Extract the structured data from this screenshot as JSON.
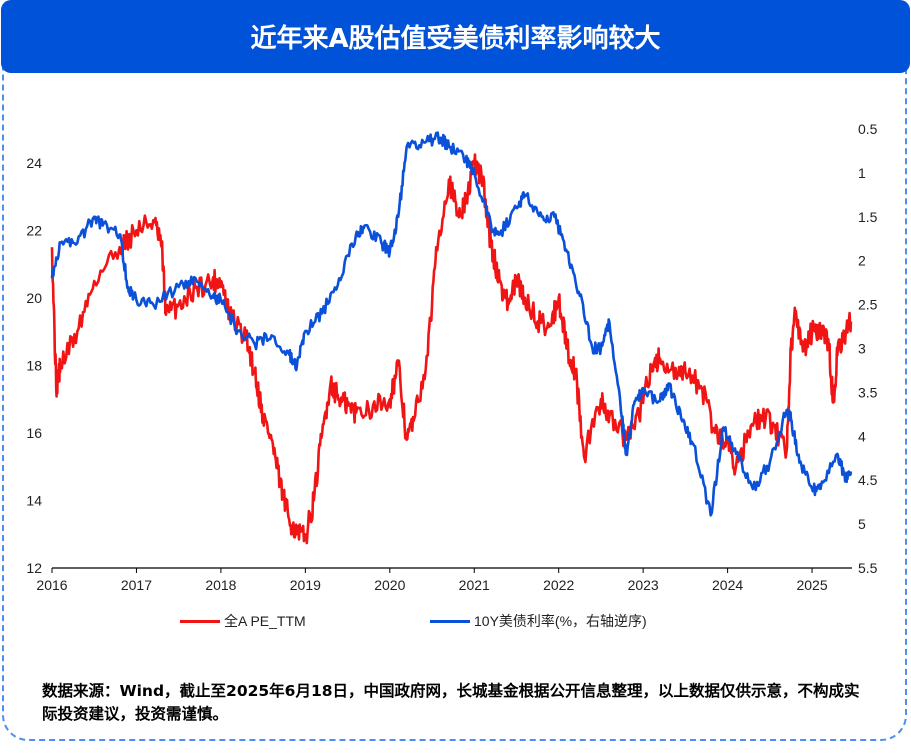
{
  "title": "近年来A股估值受美债利率影响较大",
  "footnote": "数据来源：Wind，截止至2025年6月18日，中国政府网，长城基金根据公开信息整理，以上数据仅供示意，不构成实际投资建议，投资需谨慎。",
  "chart_data": {
    "type": "line",
    "xlim": [
      2016,
      2025.46
    ],
    "x_ticks": [
      "2016",
      "2017",
      "2018",
      "2019",
      "2020",
      "2021",
      "2022",
      "2023",
      "2024",
      "2025"
    ],
    "y_left": {
      "range": [
        12,
        25
      ],
      "ticks": [
        "12",
        "14",
        "16",
        "18",
        "20",
        "22",
        "24"
      ]
    },
    "y_right": {
      "range": [
        0.5,
        5.5
      ],
      "inverted": true,
      "ticks": [
        "0.5",
        "1",
        "1.5",
        "2",
        "2.5",
        "3",
        "3.5",
        "4",
        "4.5",
        "5",
        "5.5"
      ]
    },
    "grid": false,
    "legend_position": "bottom",
    "series": [
      {
        "name": "全A PE_TTM",
        "axis": "left",
        "color": "#f01414",
        "x": [
          2016.0,
          2016.05,
          2016.1,
          2016.3,
          2016.5,
          2016.8,
          2017.0,
          2017.2,
          2017.3,
          2017.35,
          2017.5,
          2017.7,
          2017.9,
          2018.0,
          2018.1,
          2018.3,
          2018.4,
          2018.5,
          2018.6,
          2018.7,
          2018.8,
          2018.9,
          2019.0,
          2019.1,
          2019.2,
          2019.3,
          2019.4,
          2019.5,
          2019.6,
          2019.8,
          2020.0,
          2020.1,
          2020.2,
          2020.3,
          2020.45,
          2020.55,
          2020.7,
          2020.8,
          2020.9,
          2021.0,
          2021.1,
          2021.2,
          2021.3,
          2021.4,
          2021.5,
          2021.6,
          2021.75,
          2021.9,
          2022.0,
          2022.1,
          2022.2,
          2022.3,
          2022.5,
          2022.6,
          2022.8,
          2022.95,
          2023.1,
          2023.2,
          2023.4,
          2023.5,
          2023.7,
          2023.85,
          2024.0,
          2024.1,
          2024.25,
          2024.4,
          2024.55,
          2024.7,
          2024.75,
          2024.8,
          2024.9,
          2025.0,
          2025.1,
          2025.2,
          2025.25,
          2025.3,
          2025.4,
          2025.46
        ],
        "y": [
          21.5,
          17.3,
          18.0,
          19.0,
          20.5,
          21.5,
          22.0,
          22.3,
          21.5,
          19.5,
          19.8,
          20.3,
          20.5,
          20.5,
          19.5,
          18.8,
          17.8,
          16.5,
          15.8,
          14.5,
          13.5,
          13.0,
          12.9,
          14.0,
          16.0,
          17.5,
          17.0,
          16.8,
          16.6,
          16.8,
          17.0,
          18.0,
          15.8,
          16.5,
          18.3,
          21.5,
          23.5,
          22.5,
          22.8,
          24.0,
          23.5,
          21.5,
          20.5,
          19.8,
          20.5,
          20.0,
          19.3,
          19.2,
          20.0,
          18.5,
          17.8,
          15.3,
          17.0,
          16.5,
          15.8,
          16.5,
          18.0,
          18.2,
          17.6,
          17.8,
          17.3,
          16.0,
          15.7,
          15.0,
          16.0,
          16.5,
          16.2,
          15.5,
          18.5,
          19.5,
          18.5,
          19.0,
          19.0,
          18.6,
          16.9,
          18.3,
          19.0,
          19.3
        ]
      },
      {
        "name": "10Y美债利率(%，右轴逆序)",
        "axis": "right",
        "color": "#0a50d8",
        "x": [
          2016.0,
          2016.1,
          2016.3,
          2016.5,
          2016.6,
          2016.8,
          2016.9,
          2017.0,
          2017.2,
          2017.5,
          2017.7,
          2017.9,
          2018.0,
          2018.2,
          2018.4,
          2018.6,
          2018.8,
          2018.9,
          2019.0,
          2019.2,
          2019.4,
          2019.6,
          2019.7,
          2019.9,
          2020.0,
          2020.1,
          2020.2,
          2020.4,
          2020.6,
          2020.7,
          2020.9,
          2021.0,
          2021.2,
          2021.3,
          2021.5,
          2021.6,
          2021.8,
          2021.95,
          2022.1,
          2022.25,
          2022.4,
          2022.5,
          2022.6,
          2022.75,
          2022.8,
          2022.9,
          2023.0,
          2023.2,
          2023.3,
          2023.45,
          2023.6,
          2023.8,
          2023.95,
          2024.1,
          2024.3,
          2024.5,
          2024.7,
          2024.75,
          2024.85,
          2025.0,
          2025.1,
          2025.3,
          2025.4,
          2025.46
        ],
        "y": [
          2.2,
          1.8,
          1.8,
          1.5,
          1.6,
          1.7,
          2.3,
          2.45,
          2.5,
          2.3,
          2.2,
          2.4,
          2.45,
          2.8,
          2.95,
          2.85,
          3.05,
          3.2,
          2.8,
          2.6,
          2.2,
          1.7,
          1.6,
          1.8,
          1.9,
          1.5,
          0.7,
          0.65,
          0.6,
          0.7,
          0.85,
          1.0,
          1.6,
          1.7,
          1.4,
          1.25,
          1.5,
          1.5,
          1.9,
          2.4,
          3.0,
          3.0,
          2.7,
          3.8,
          4.2,
          3.6,
          3.5,
          3.6,
          3.4,
          3.8,
          4.1,
          4.9,
          3.9,
          4.2,
          4.6,
          4.3,
          3.7,
          3.8,
          4.3,
          4.6,
          4.6,
          4.2,
          4.5,
          4.4
        ]
      }
    ]
  }
}
